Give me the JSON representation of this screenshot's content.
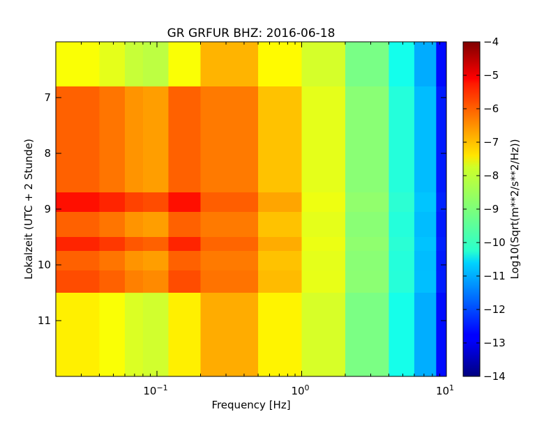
{
  "chart_data": {
    "type": "heatmap",
    "title": "GR GRFUR BHZ: 2016-06-18",
    "xlabel": "Frequency [Hz]",
    "ylabel": "Lokalzeit (UTC + 2 Stunde)",
    "xscale": "log",
    "xlim": [
      0.02,
      10
    ],
    "ylim": [
      12,
      6
    ],
    "x_ticks": [
      {
        "value": 0.1,
        "base": "10",
        "exp": "−1"
      },
      {
        "value": 1,
        "base": "10",
        "exp": "0"
      },
      {
        "value": 10,
        "base": "10",
        "exp": "1"
      }
    ],
    "y_ticks": [
      7,
      8,
      9,
      10,
      11
    ],
    "colorbar": {
      "label": "Log10(Sqrt(m**2/s**2/Hz))",
      "range": [
        -14,
        -4
      ],
      "ticks": [
        "−4",
        "−5",
        "−6",
        "−7",
        "−8",
        "−9",
        "−10",
        "−11",
        "−12",
        "−13",
        "−14"
      ],
      "colormap": "jet"
    },
    "columns": [
      {
        "f_start": 0.02,
        "f_end": 0.04,
        "value": -7.2
      },
      {
        "f_start": 0.04,
        "f_end": 0.06,
        "value": -7.4
      },
      {
        "f_start": 0.06,
        "f_end": 0.08,
        "value": -7.7
      },
      {
        "f_start": 0.08,
        "f_end": 0.12,
        "value": -7.8
      },
      {
        "f_start": 0.12,
        "f_end": 0.2,
        "value": -7.2
      },
      {
        "f_start": 0.2,
        "f_end": 0.5,
        "value": -6.8
      },
      {
        "f_start": 0.5,
        "f_end": 1.0,
        "value": -7.5
      },
      {
        "f_start": 1.0,
        "f_end": 2.0,
        "value": -8.1
      },
      {
        "f_start": 2.0,
        "f_end": 4.0,
        "value": -9.0
      },
      {
        "f_start": 4.0,
        "f_end": 6.0,
        "value": -10.0
      },
      {
        "f_start": 6.0,
        "f_end": 8.5,
        "value": -11.0
      },
      {
        "f_start": 8.5,
        "f_end": 10.0,
        "value": -12.6
      }
    ],
    "time_bands": [
      {
        "t_start": 6.0,
        "t_end": 6.8,
        "value": -8.0
      },
      {
        "t_start": 6.8,
        "t_end": 8.7,
        "value": -6.4
      },
      {
        "t_start": 8.7,
        "t_end": 9.05,
        "value": -5.6
      },
      {
        "t_start": 9.05,
        "t_end": 9.5,
        "value": -6.4
      },
      {
        "t_start": 9.5,
        "t_end": 9.75,
        "value": -5.8
      },
      {
        "t_start": 9.75,
        "t_end": 10.1,
        "value": -6.4
      },
      {
        "t_start": 10.1,
        "t_end": 10.5,
        "value": -6.2
      },
      {
        "t_start": 10.5,
        "t_end": 12.0,
        "value": -7.8
      }
    ]
  }
}
